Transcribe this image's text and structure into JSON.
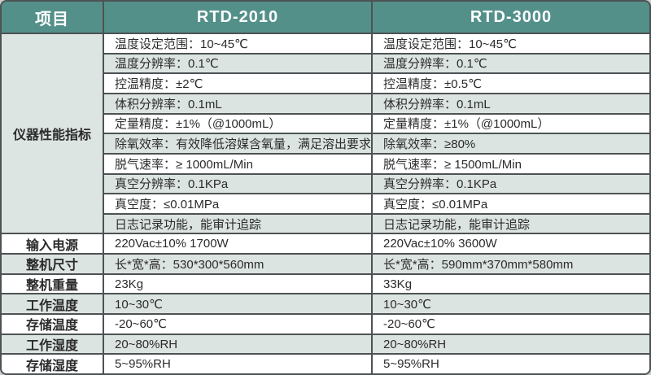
{
  "table": {
    "header": {
      "item": "项目",
      "product1": "RTD-2010",
      "product2": "RTD-3000"
    },
    "performance": {
      "label": "仪器性能指标",
      "rows": [
        {
          "p1": "温度设定范围：10~45℃",
          "p2": "温度设定范围：10~45℃"
        },
        {
          "p1": "温度分辨率：0.1℃",
          "p2": "温度分辨率：0.1℃"
        },
        {
          "p1": "控温精度：±2℃",
          "p2": "控温精度：±0.5℃"
        },
        {
          "p1": "体积分辨率：0.1mL",
          "p2": "体积分辨率：0.1mL"
        },
        {
          "p1": "定量精度：±1%（@1000mL）",
          "p2": "定量精度：±1%（@1000mL）"
        },
        {
          "p1": "除氧效率：有效降低溶媒含氧量，满足溶出要求",
          "p2": "除氧效率：≥80%"
        },
        {
          "p1": "脱气速率：≥ 1000mL/Min",
          "p2": "脱气速率：≥ 1500mL/Min"
        },
        {
          "p1": "真空分辨率：0.1KPa",
          "p2": "真空分辨率：0.1KPa"
        },
        {
          "p1": "真空度：≤0.01MPa",
          "p2": "真空度：≤0.01MPa"
        },
        {
          "p1": "日志记录功能，能审计追踪",
          "p2": "日志记录功能，能审计追踪"
        }
      ]
    },
    "rows": [
      {
        "label": "输入电源",
        "p1": "220Vac±10% 1700W",
        "p2": "220Vac±10% 3600W"
      },
      {
        "label": "整机尺寸",
        "p1": "长*宽*高：530*300*560mm",
        "p2": "长*宽*高：590mm*370mm*580mm"
      },
      {
        "label": "整机重量",
        "p1": "23Kg",
        "p2": "33Kg"
      },
      {
        "label": "工作温度",
        "p1": "10~30℃",
        "p2": "10~30℃"
      },
      {
        "label": "存储温度",
        "p1": "-20~60℃",
        "p2": "-20~60℃"
      },
      {
        "label": "工作湿度",
        "p1": "20~80%RH",
        "p2": "20~80%RH"
      },
      {
        "label": "存储湿度",
        "p1": "5~95%RH",
        "p2": "5~95%RH"
      }
    ]
  },
  "colors": {
    "header_bg": "#539089",
    "header_text": "#ffffff",
    "stripe": "#dce4e2",
    "group_bg": "#dde5e2",
    "border": "#4d5254",
    "text": "#2b2b2b"
  }
}
